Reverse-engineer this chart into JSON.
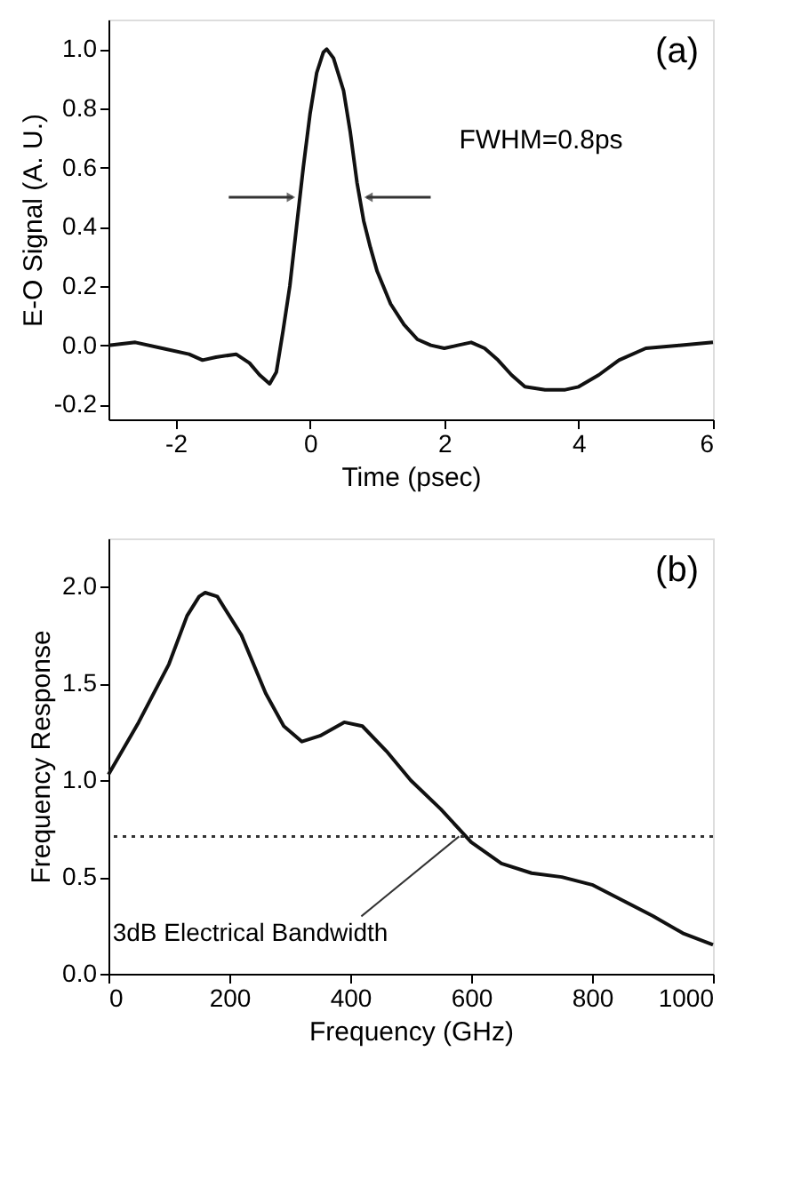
{
  "chart_data": [
    {
      "type": "line",
      "xlabel": "Time (psec)",
      "ylabel": "E-O Signal (A. U.)",
      "x": [
        -3,
        -2.6,
        -2.2,
        -1.8,
        -1.6,
        -1.4,
        -1.1,
        -0.9,
        -0.75,
        -0.6,
        -0.5,
        -0.4,
        -0.3,
        -0.2,
        -0.1,
        0,
        0.1,
        0.2,
        0.25,
        0.35,
        0.5,
        0.6,
        0.7,
        0.8,
        0.9,
        1.0,
        1.2,
        1.4,
        1.6,
        1.8,
        2.0,
        2.2,
        2.4,
        2.6,
        2.8,
        3.0,
        3.2,
        3.5,
        3.8,
        4.0,
        4.3,
        4.6,
        5.0,
        5.5,
        6
      ],
      "series": [
        {
          "color": "#111111",
          "values": [
            0,
            0.01,
            -0.01,
            -0.03,
            -0.05,
            -0.04,
            -0.03,
            -0.06,
            -0.1,
            -0.13,
            -0.09,
            0.05,
            0.2,
            0.4,
            0.6,
            0.78,
            0.92,
            0.99,
            1.0,
            0.97,
            0.86,
            0.72,
            0.55,
            0.42,
            0.33,
            0.25,
            0.14,
            0.07,
            0.02,
            0.0,
            -0.01,
            0.0,
            0.01,
            -0.01,
            -0.05,
            -0.1,
            -0.14,
            -0.15,
            -0.15,
            -0.14,
            -0.1,
            -0.05,
            -0.01,
            0.0,
            0.01
          ]
        }
      ],
      "xlim": [
        -3,
        6
      ],
      "ylim": [
        -0.25,
        1.1
      ],
      "xticks": [
        -2,
        0,
        2,
        4,
        6
      ],
      "yticks": [
        {
          "value": -0.2,
          "label": "-0.2"
        },
        {
          "value": 0,
          "label": "0.0"
        },
        {
          "value": 0.2,
          "label": "0.2"
        },
        {
          "value": 0.4,
          "label": "0.4"
        },
        {
          "value": 0.6,
          "label": "0.6"
        },
        {
          "value": 0.8,
          "label": "0.8"
        },
        {
          "value": 1,
          "label": "1.0"
        }
      ],
      "annotations": [
        "(a)",
        "FWHM=0.8ps"
      ],
      "grid": false
    },
    {
      "type": "line",
      "xlabel": "Frequency (GHz)",
      "ylabel": "Frequency Response",
      "x": [
        0,
        50,
        100,
        130,
        150,
        160,
        180,
        220,
        260,
        290,
        320,
        350,
        390,
        420,
        460,
        500,
        550,
        600,
        650,
        700,
        750,
        800,
        850,
        900,
        950,
        1000
      ],
      "series": [
        {
          "color": "#111111",
          "values": [
            1.03,
            1.3,
            1.6,
            1.85,
            1.95,
            1.97,
            1.95,
            1.75,
            1.45,
            1.28,
            1.2,
            1.23,
            1.3,
            1.28,
            1.15,
            1.0,
            0.85,
            0.68,
            0.57,
            0.52,
            0.5,
            0.46,
            0.38,
            0.3,
            0.21,
            0.15
          ]
        }
      ],
      "xlim": [
        0,
        1000
      ],
      "ylim": [
        0,
        2.25
      ],
      "xticks": [
        0,
        200,
        400,
        600,
        800,
        1000
      ],
      "yticks": [
        {
          "value": 0,
          "label": "0.0"
        },
        {
          "value": 0.5,
          "label": "0.5"
        },
        {
          "value": 1,
          "label": "1.0"
        },
        {
          "value": 1.5,
          "label": "1.5"
        },
        {
          "value": 2,
          "label": "2.0"
        }
      ],
      "ref_lines": [
        {
          "axis": "y",
          "value": 0.71,
          "color": "#333333",
          "line_style": "dotted"
        }
      ],
      "annotations": [
        "(b)",
        {
          "text": "3dB Electrical Bandwidth",
          "x": 580,
          "y": 0.71
        }
      ],
      "grid": false
    }
  ]
}
